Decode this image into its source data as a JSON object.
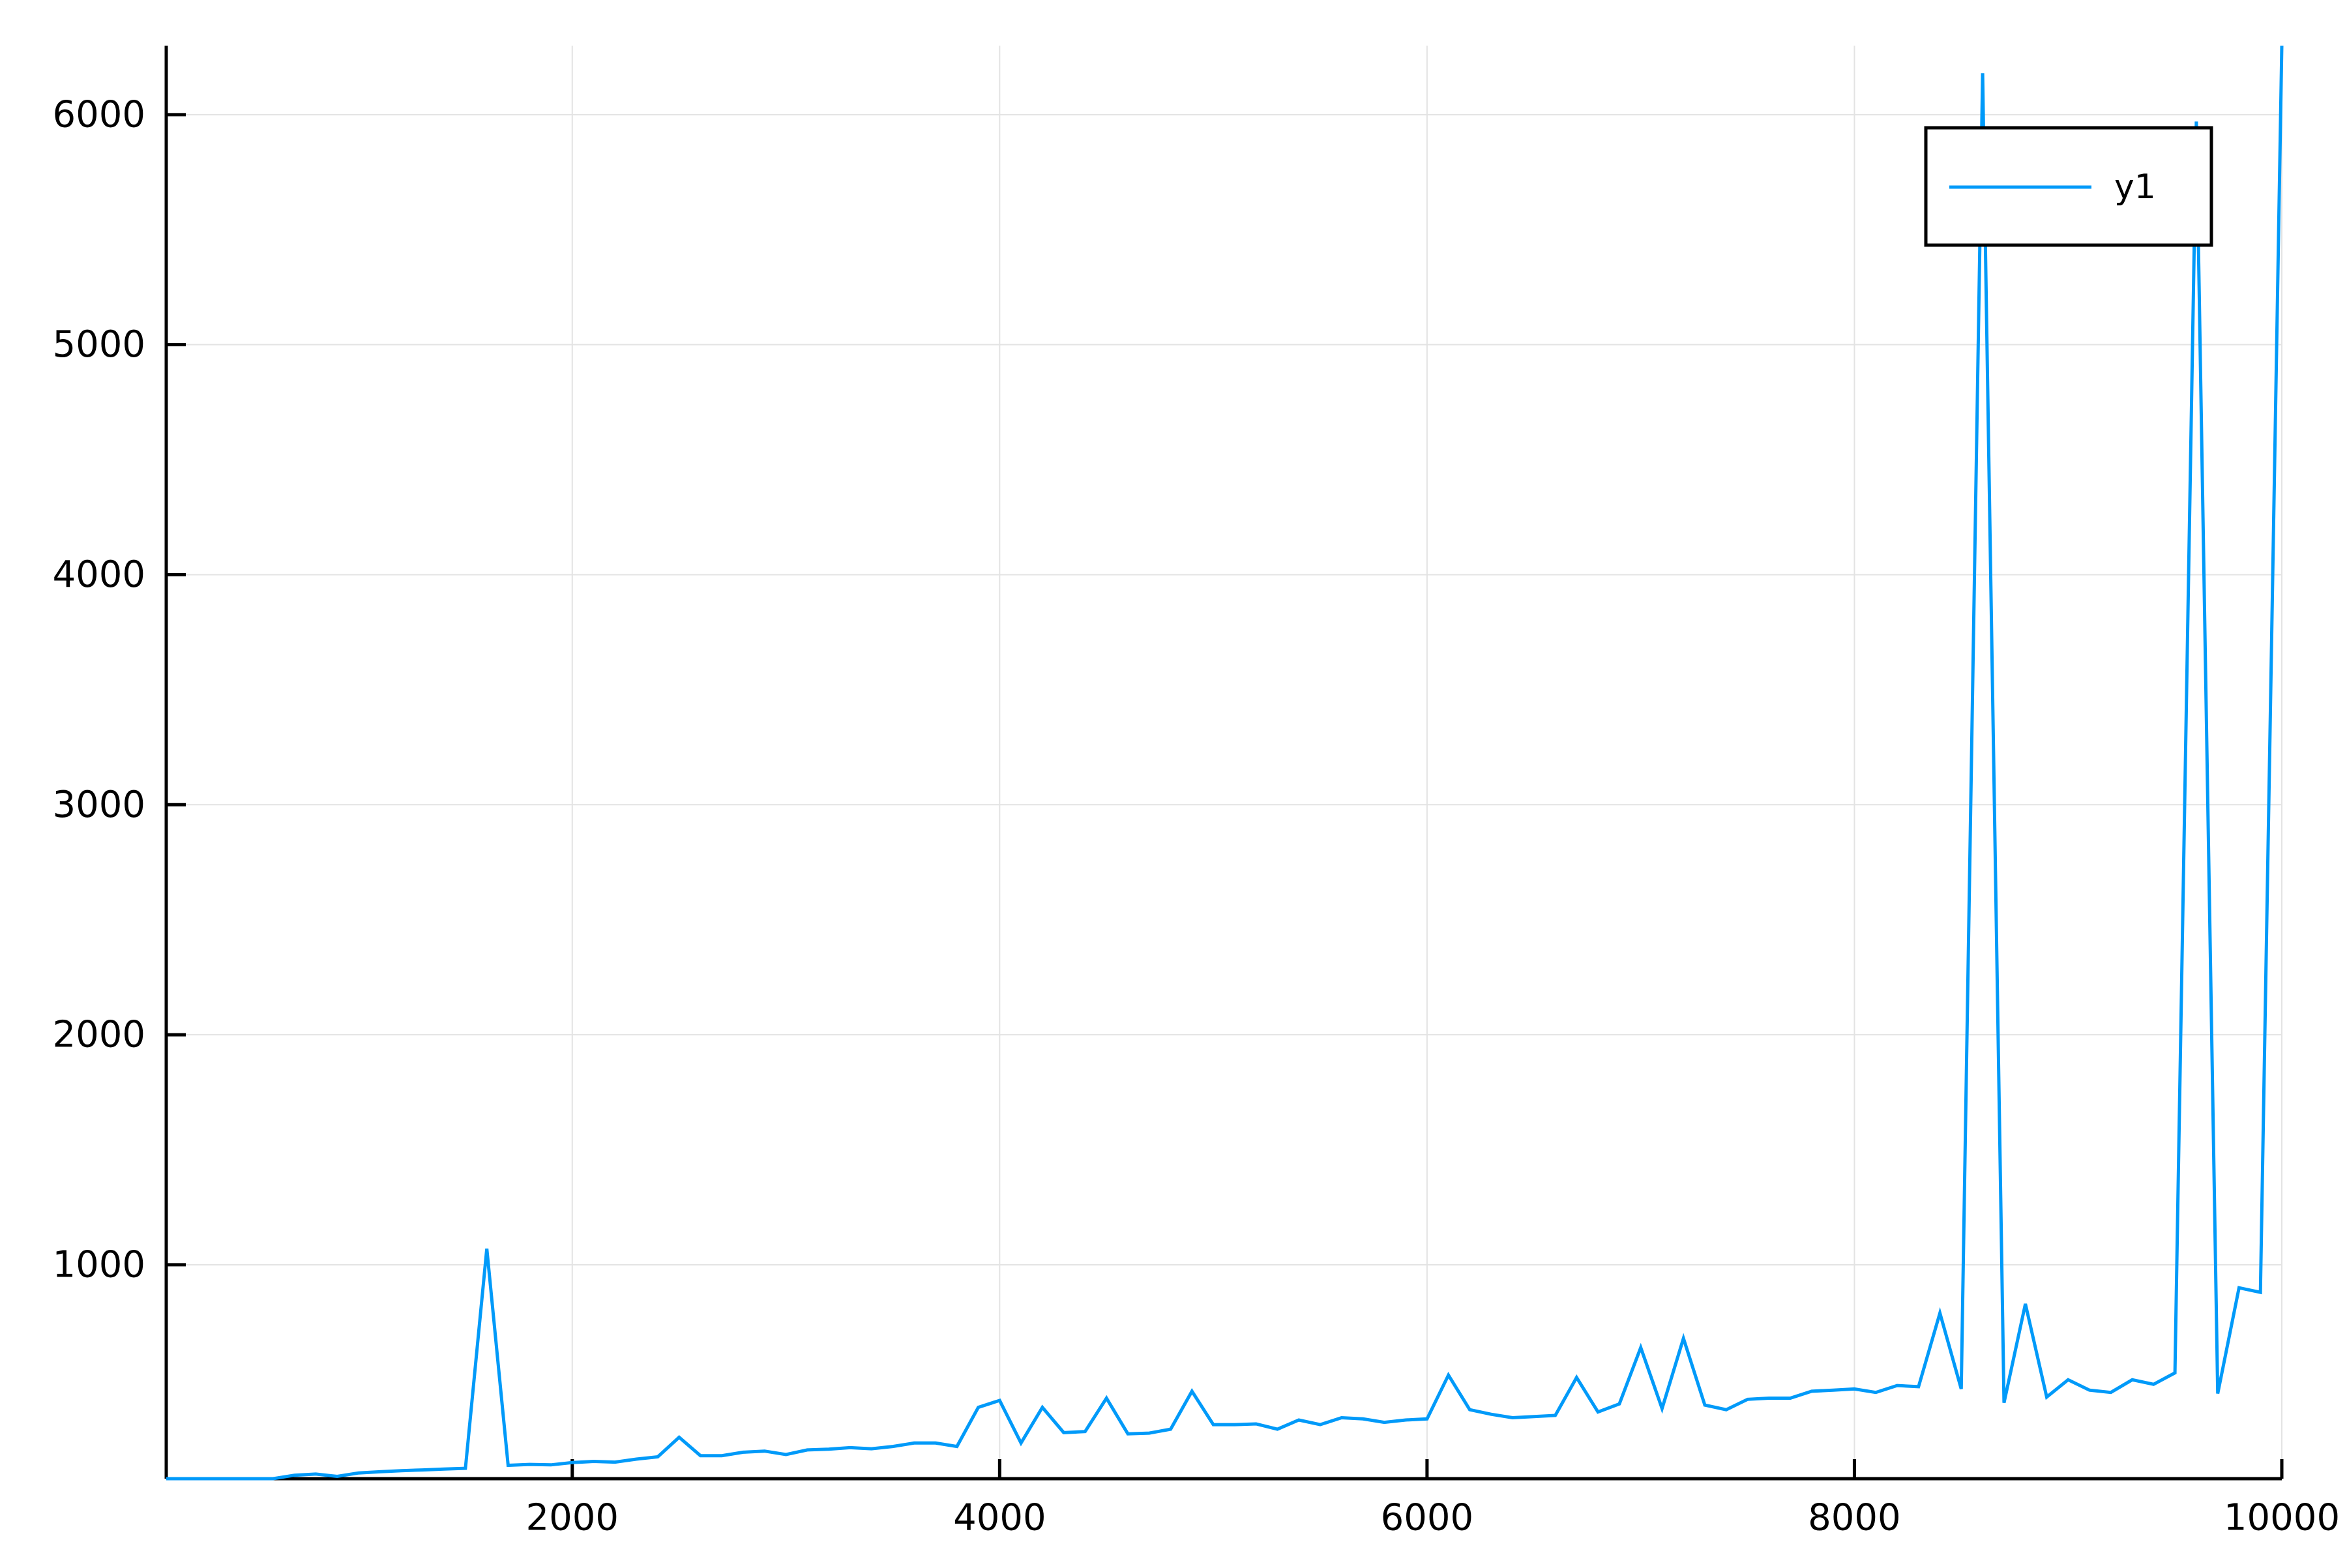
{
  "chart_data": {
    "type": "line",
    "title": "",
    "xlabel": "",
    "ylabel": "",
    "xlim": [
      100,
      10000
    ],
    "ylim": [
      70,
      6300
    ],
    "xticks": [
      2000,
      4000,
      6000,
      8000,
      10000
    ],
    "yticks": [
      1000,
      2000,
      3000,
      4000,
      5000,
      6000
    ],
    "xtick_labels": [
      "2000",
      "4000",
      "6000",
      "8000",
      "10000"
    ],
    "ytick_labels": [
      "1000",
      "2000",
      "3000",
      "4000",
      "5000",
      "6000"
    ],
    "grid": true,
    "legend": {
      "position": "top-right",
      "entries": [
        "y1"
      ]
    },
    "series": [
      {
        "name": "y1",
        "color": "#009AF9",
        "x": [
          100,
          200,
          300,
          400,
          500,
          600,
          700,
          800,
          900,
          1000,
          1100,
          1200,
          1300,
          1400,
          1500,
          1600,
          1700,
          1800,
          1900,
          2000,
          2100,
          2200,
          2300,
          2400,
          2500,
          2600,
          2700,
          2800,
          2900,
          3000,
          3100,
          3200,
          3300,
          3400,
          3500,
          3600,
          3700,
          3800,
          3900,
          4000,
          4100,
          4200,
          4300,
          4400,
          4500,
          4600,
          4700,
          4800,
          4900,
          5000,
          5100,
          5200,
          5300,
          5400,
          5500,
          5600,
          5700,
          5800,
          5900,
          6000,
          6100,
          6200,
          6300,
          6400,
          6500,
          6600,
          6700,
          6800,
          6900,
          7000,
          7100,
          7200,
          7300,
          7400,
          7500,
          7600,
          7700,
          7800,
          7900,
          8000,
          8100,
          8200,
          8300,
          8400,
          8500,
          8600,
          8700,
          8800,
          8900,
          9000,
          9100,
          9200,
          9300,
          9400,
          9500,
          9600,
          9700,
          9800,
          9900,
          10000
        ],
        "y": [
          70,
          70,
          70,
          70,
          70,
          70,
          85,
          90,
          80,
          95,
          100,
          105,
          108,
          112,
          115,
          1070,
          128,
          132,
          130,
          140,
          145,
          142,
          155,
          165,
          250,
          170,
          170,
          185,
          190,
          175,
          195,
          198,
          205,
          200,
          210,
          225,
          225,
          210,
          380,
          410,
          225,
          380,
          270,
          275,
          420,
          265,
          268,
          285,
          450,
          305,
          305,
          308,
          285,
          325,
          305,
          335,
          330,
          315,
          325,
          330,
          520,
          370,
          350,
          335,
          340,
          345,
          510,
          360,
          395,
          640,
          375,
          680,
          390,
          370,
          415,
          420,
          420,
          450,
          455,
          460,
          445,
          475,
          470,
          790,
          460,
          6180,
          400,
          830,
          425,
          500,
          455,
          445,
          500,
          480,
          530,
          5970,
          440,
          900,
          880,
          6300
        ]
      }
    ]
  }
}
